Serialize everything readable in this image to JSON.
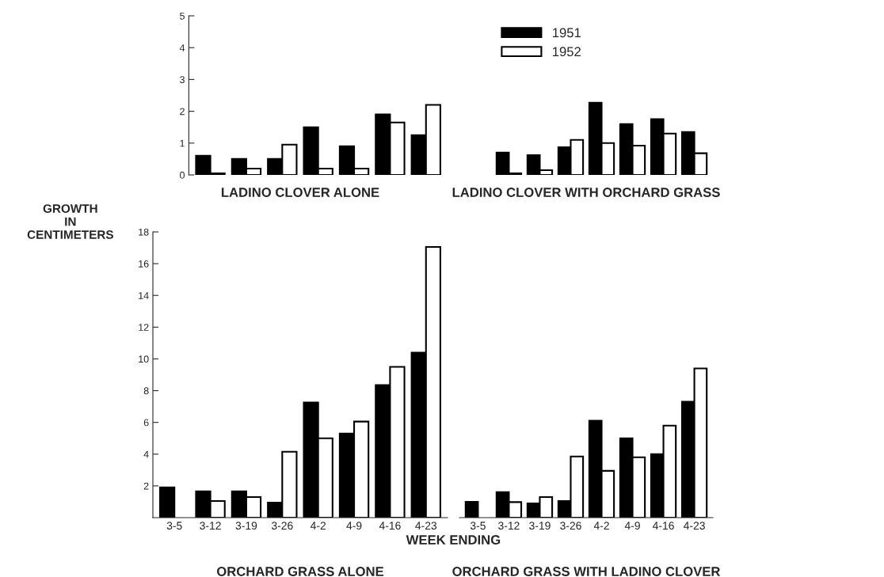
{
  "chart_data": [
    {
      "type": "bar",
      "title": "LADINO CLOVER ALONE",
      "categories": [
        "3-12",
        "3-19",
        "3-26",
        "4-2",
        "4-9",
        "4-16",
        "4-23"
      ],
      "ylim": [
        0,
        5
      ],
      "yticks": [
        0,
        1,
        2,
        3,
        4,
        5
      ],
      "tick_labels": "y",
      "ylabel": "GROWTH\nIN\nCENTIMETERS",
      "series": [
        {
          "color": "#000000",
          "values": [
            0.6,
            0.5,
            0.5,
            1.5,
            0.9,
            1.9,
            1.25
          ]
        },
        {
          "color": "#ffffff",
          "values": [
            0.05,
            0.2,
            0.95,
            0.2,
            0.2,
            1.65,
            2.2
          ]
        }
      ]
    },
    {
      "type": "bar",
      "title": "LADINO CLOVER WITH ORCHARD GRASS",
      "categories": [
        "3-12",
        "3-19",
        "3-26",
        "4-2",
        "4-9",
        "4-16",
        "4-23"
      ],
      "ylim": [
        0,
        5
      ],
      "tick_labels": false,
      "legend": "top left",
      "series": [
        {
          "name": "1951",
          "color": "#000000",
          "values": [
            0.7,
            0.62,
            0.87,
            2.27,
            1.6,
            1.75,
            1.35
          ]
        },
        {
          "name": "1952",
          "color": "#ffffff",
          "values": [
            0.05,
            0.15,
            1.1,
            1.0,
            0.92,
            1.3,
            0.68
          ]
        }
      ]
    },
    {
      "type": "bar",
      "title": "ORCHARD GRASS ALONE",
      "xlabel": "WEEK ENDING",
      "categories": [
        "3-5",
        "3-12",
        "3-19",
        "3-26",
        "4-2",
        "4-9",
        "4-16",
        "4-23"
      ],
      "ylim": [
        0,
        18
      ],
      "yticks": [
        2,
        4,
        6,
        8,
        10,
        12,
        14,
        16,
        18
      ],
      "series": [
        {
          "color": "#000000",
          "values": [
            1.9,
            1.65,
            1.65,
            0.95,
            7.25,
            5.3,
            8.35,
            10.4
          ]
        },
        {
          "color": "#ffffff",
          "values": [
            null,
            1.05,
            1.3,
            4.15,
            5.0,
            6.05,
            9.5,
            17.05
          ]
        }
      ]
    },
    {
      "type": "bar",
      "title": "ORCHARD GRASS WITH LADINO CLOVER",
      "categories": [
        "3-5",
        "3-12",
        "3-19",
        "3-26",
        "4-2",
        "4-9",
        "4-16",
        "4-23"
      ],
      "ylim": [
        0,
        18
      ],
      "tick_labels": "x",
      "series": [
        {
          "color": "#000000",
          "values": [
            1.0,
            1.6,
            0.9,
            1.05,
            6.1,
            5.0,
            4.0,
            7.3
          ]
        },
        {
          "color": "#ffffff",
          "values": [
            null,
            0.98,
            1.3,
            3.85,
            2.95,
            3.8,
            5.8,
            9.4
          ]
        }
      ]
    }
  ]
}
